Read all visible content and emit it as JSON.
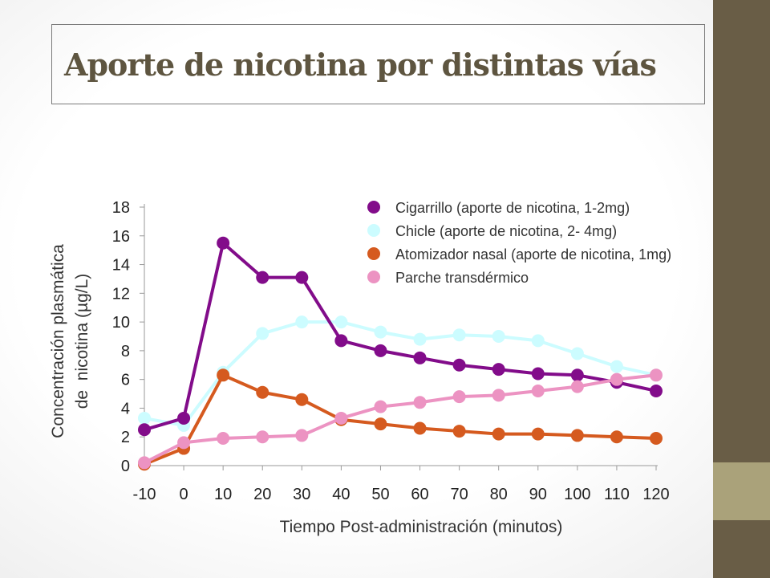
{
  "slide": {
    "title": "Aporte de nicotina por distintas vías",
    "accent_color": "#695d46",
    "accent_light_color": "#aaa27a"
  },
  "chart_data": {
    "type": "line",
    "title": "",
    "xlabel": "Tiempo Post-administración (minutos)",
    "ylabel_lines": [
      "Concentración plasmática",
      "de  nicotina (µg/L)"
    ],
    "x": [
      -10,
      0,
      10,
      20,
      30,
      40,
      50,
      60,
      70,
      80,
      90,
      100,
      110,
      120
    ],
    "xticks": [
      "-10",
      "0",
      "10",
      "20",
      "30",
      "40",
      "50",
      "60",
      "70",
      "80",
      "90",
      "100",
      "110",
      "120"
    ],
    "yticks": [
      "0",
      "2",
      "4",
      "6",
      "8",
      "10",
      "12",
      "14",
      "16",
      "18"
    ],
    "ylim": [
      0,
      18
    ],
    "grid": false,
    "legend_position": "top-right",
    "series": [
      {
        "name": "Chicle (aporte de nicotina, 2- 4mg)",
        "color": "#ccfcff",
        "values": [
          3.3,
          2.8,
          6.5,
          9.2,
          10.0,
          10.0,
          9.3,
          8.8,
          9.1,
          9.0,
          8.7,
          7.8,
          6.9,
          6.3
        ]
      },
      {
        "name": "Atomizador nasal (aporte de nicotina, 1mg)",
        "color": "#d55a1f",
        "values": [
          0.1,
          1.2,
          6.3,
          5.1,
          4.6,
          3.2,
          2.9,
          2.6,
          2.4,
          2.2,
          2.2,
          2.1,
          2.0,
          1.9
        ]
      },
      {
        "name": "Cigarrillo (aporte de nicotina, 1-2mg)",
        "color": "#820c8a",
        "values": [
          2.5,
          3.3,
          15.5,
          13.1,
          13.1,
          8.7,
          8.0,
          7.5,
          7.0,
          6.7,
          6.4,
          6.3,
          5.8,
          5.2
        ]
      },
      {
        "name": "Parche transdérmico",
        "color": "#ec93c2",
        "values": [
          0.2,
          1.6,
          1.9,
          2.0,
          2.1,
          3.3,
          4.1,
          4.4,
          4.8,
          4.9,
          5.2,
          5.5,
          6.0,
          6.3
        ]
      }
    ],
    "legend_order": [
      2,
      0,
      1,
      3
    ]
  }
}
